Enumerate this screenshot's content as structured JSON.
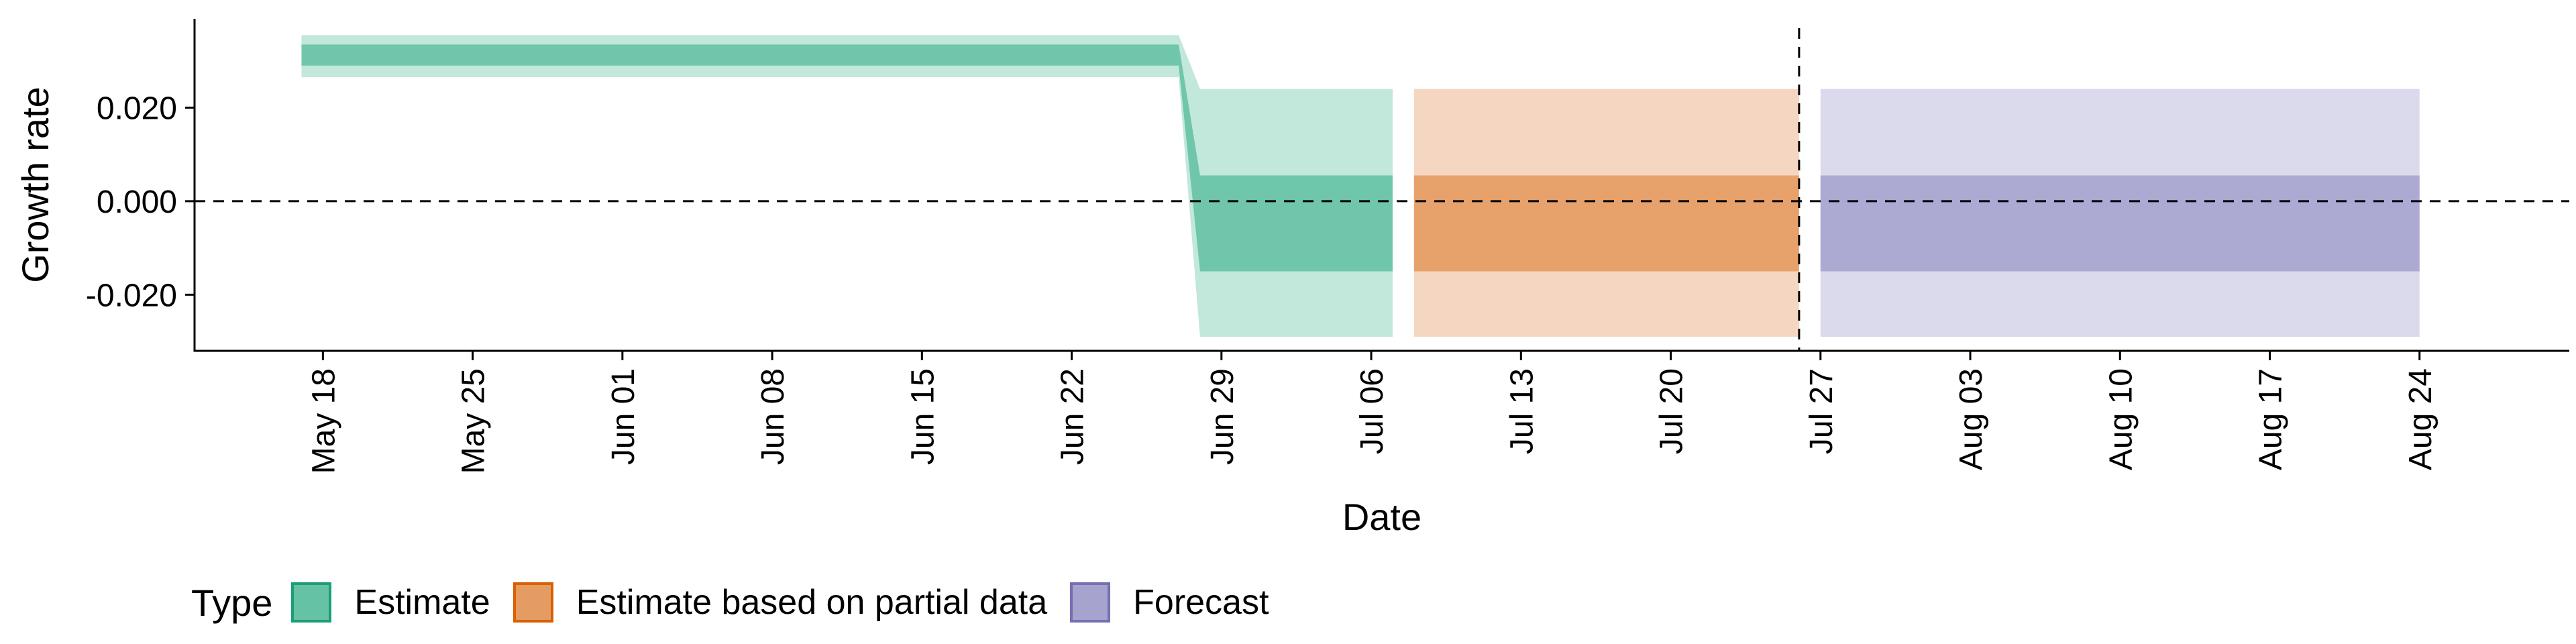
{
  "chart_data": {
    "type": "area",
    "xlabel": "Date",
    "ylabel": "Growth rate",
    "x_ticks": [
      "2020-05-18",
      "2020-05-25",
      "2020-06-01",
      "2020-06-08",
      "2020-06-15",
      "2020-06-22",
      "2020-06-29",
      "2020-07-06",
      "2020-07-13",
      "2020-07-20",
      "2020-07-27",
      "2020-08-03",
      "2020-08-10",
      "2020-08-17",
      "2020-08-24"
    ],
    "x_tick_labels": [
      "May 18",
      "May 25",
      "Jun 01",
      "Jun 08",
      "Jun 15",
      "Jun 22",
      "Jun 29",
      "Jul 06",
      "Jul 13",
      "Jul 20",
      "Jul 27",
      "Aug 03",
      "Aug 10",
      "Aug 17",
      "Aug 24"
    ],
    "xlim": [
      "2020-05-12",
      "2020-08-31"
    ],
    "y_ticks": [
      0.02,
      0.0,
      -0.02
    ],
    "y_tick_labels": [
      "0.020",
      "0.000",
      "-0.020"
    ],
    "ylim": [
      -0.032,
      0.039
    ],
    "hline_y": 0,
    "vline_x": "2020-07-26",
    "grid": false,
    "legend_placement": "bottom",
    "legend_title": "Type",
    "series": [
      {
        "name": "Estimate",
        "fill": "#66c2a5",
        "border": "#1b9e77",
        "x": [
          "2020-05-17",
          "2020-06-27",
          "2020-06-28",
          "2020-07-07"
        ],
        "inner_upper": [
          0.0335,
          0.0335,
          0.0055,
          0.0055
        ],
        "inner_lower": [
          0.029,
          0.029,
          -0.015,
          -0.015
        ],
        "outer_upper": [
          0.0355,
          0.0355,
          0.024,
          0.024
        ],
        "outer_lower": [
          0.0265,
          0.0265,
          -0.029,
          -0.029
        ]
      },
      {
        "name": "Estimate based on partial data",
        "fill": "#e59c63",
        "border": "#d95f02",
        "x": [
          "2020-07-08",
          "2020-07-26"
        ],
        "inner_upper": [
          0.0055,
          0.0055
        ],
        "inner_lower": [
          -0.015,
          -0.015
        ],
        "outer_upper": [
          0.024,
          0.024
        ],
        "outer_lower": [
          -0.029,
          -0.029
        ]
      },
      {
        "name": "Forecast",
        "fill": "#a6a3cf",
        "border": "#7570b3",
        "x": [
          "2020-07-27",
          "2020-08-24"
        ],
        "inner_upper": [
          0.0055,
          0.0055
        ],
        "inner_lower": [
          -0.015,
          -0.015
        ],
        "outer_upper": [
          0.024,
          0.024
        ],
        "outer_lower": [
          -0.029,
          -0.029
        ]
      }
    ]
  }
}
